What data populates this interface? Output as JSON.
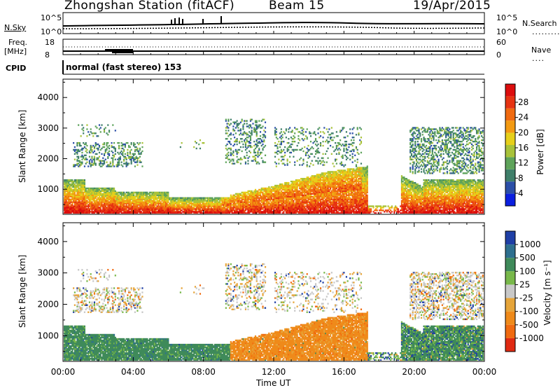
{
  "header": {
    "station": "Zhongshan Station (fitACF)",
    "beam": "Beam 15",
    "date": "19/Apr/2015"
  },
  "top_panels": {
    "nsky_label": "N.Sky",
    "nsearch_label": "N.Search",
    "freq_label_1": "Freq.",
    "freq_label_2": "[MHz]",
    "nave_label": "Nave",
    "cpid_label": "CPID",
    "cpid_text": "normal (fast stereo) 153",
    "noise_left_ticks": [
      "10^5",
      "10^0"
    ],
    "noise_right_ticks": [
      "10^5",
      "10^0"
    ],
    "freq_ticks": [
      "18",
      "8"
    ],
    "nave_ticks": [
      "60",
      "0"
    ]
  },
  "chart_data": [
    {
      "type": "heatmap",
      "name": "power",
      "ylabel": "Slant Range [km]",
      "xlabel": "Time UT",
      "x_tick_labels": [
        "00:00",
        "04:00",
        "08:00",
        "12:00",
        "16:00",
        "20:00",
        "00:00"
      ],
      "x_range_hours": [
        0,
        24
      ],
      "y_tick_labels": [
        "1000",
        "2000",
        "3000",
        "4000"
      ],
      "y_range_km": [
        180,
        4600
      ],
      "colorbar": {
        "label": "Power [dB]",
        "tick_labels": [
          "4",
          "8",
          "12",
          "16",
          "20",
          "24",
          "28"
        ],
        "colors": [
          "#0b1fe0",
          "#2b4fa8",
          "#3f7f6a",
          "#5ea35a",
          "#a8c23a",
          "#e6cf1a",
          "#f39a12",
          "#f06a10",
          "#e63312",
          "#dc0d0d"
        ]
      }
    },
    {
      "type": "heatmap",
      "name": "velocity",
      "ylabel": "Slant Range [km]",
      "xlabel": "Time UT",
      "x_tick_labels": [
        "00:00",
        "04:00",
        "08:00",
        "12:00",
        "16:00",
        "20:00",
        "00:00"
      ],
      "x_range_hours": [
        0,
        24
      ],
      "y_tick_labels": [
        "1000",
        "2000",
        "3000",
        "4000"
      ],
      "y_range_km": [
        180,
        4600
      ],
      "colorbar": {
        "label": "Velocity [m s⁻¹]",
        "tick_labels": [
          "1000",
          "500",
          "100",
          "25",
          "-25",
          "-100",
          "-500",
          "-1000"
        ],
        "colors": [
          "#1f3fa6",
          "#2e6f8f",
          "#3f8a5a",
          "#78b84a",
          "#c8c8c8",
          "#e6a53a",
          "#ef8a1a",
          "#f06a10",
          "#e02a12"
        ]
      }
    }
  ]
}
